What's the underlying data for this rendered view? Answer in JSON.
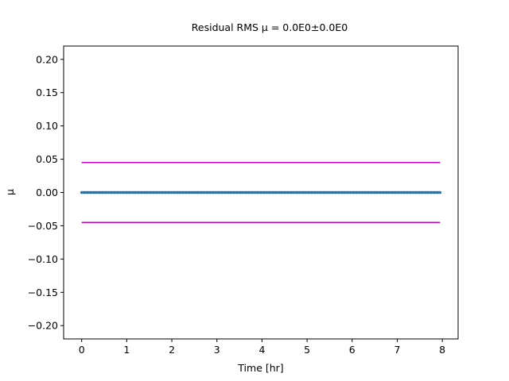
{
  "chart_data": {
    "type": "line",
    "title": "Residual RMS μ = 0.0E0±0.0E0",
    "xlabel": "Time [hr]",
    "ylabel": "μ",
    "xlim": [
      -0.4,
      8.35
    ],
    "ylim": [
      -0.22,
      0.22
    ],
    "x_ticks": [
      0,
      1,
      2,
      3,
      4,
      5,
      6,
      7,
      8
    ],
    "y_ticks": [
      -0.2,
      -0.15,
      -0.1,
      -0.05,
      0.0,
      0.05,
      0.1,
      0.15,
      0.2
    ],
    "x_tick_labels": [
      "0",
      "1",
      "2",
      "3",
      "4",
      "5",
      "6",
      "7",
      "8"
    ],
    "y_tick_labels": [
      "−0.20",
      "−0.15",
      "−0.10",
      "−0.05",
      "0.00",
      "0.05",
      "0.10",
      "0.15",
      "0.20"
    ],
    "grid": false,
    "series": [
      {
        "kind": "scatter",
        "color": "#1f77b4",
        "x_range": [
          0,
          7.95
        ],
        "y": 0.0
      },
      {
        "kind": "hline",
        "color": "#bf00bf",
        "x_range": [
          0,
          7.95
        ],
        "y": 0.045
      },
      {
        "kind": "hline",
        "color": "#bf00bf",
        "x_range": [
          0,
          7.95
        ],
        "y": -0.045
      }
    ]
  }
}
